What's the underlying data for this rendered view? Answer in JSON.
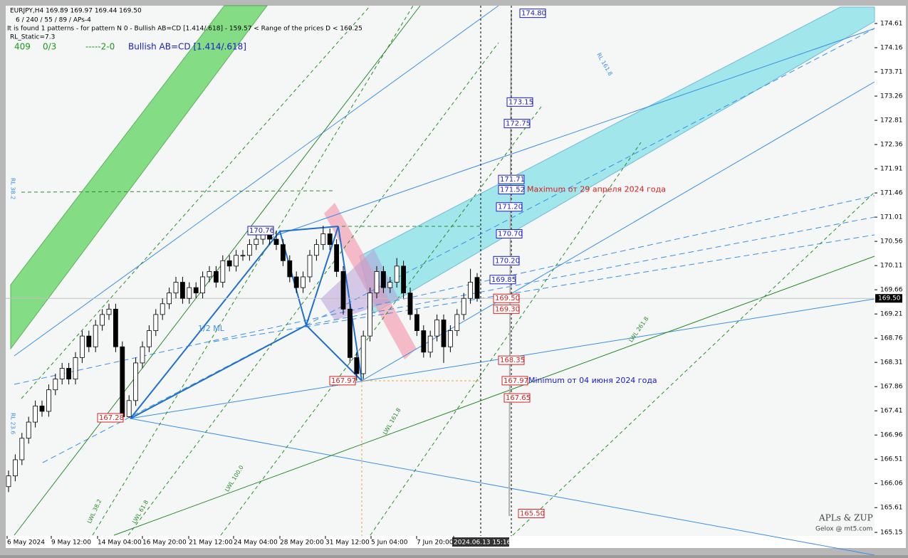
{
  "chart_data": {
    "type": "candlestick",
    "header": {
      "symbol_line": "EURJPY,H4  169.89 169.97 169.44 169.50",
      "params_line": "6 / 240 / 55 / 89 / APs-4",
      "pattern_line": "It is found 1 patterns  -  for pattern N 0 - Bullish AB=CD [1.414/.618] - 159.57 < Range of the prices D < 160.25",
      "static_line": "RL_Static=7.3",
      "count": "409",
      "ratio": "0/3",
      "zigzag": "-----2-0",
      "pattern_name": "Bullish AB=CD [1.414/.618]"
    },
    "open": [
      166.0,
      166.2,
      166.5,
      166.9,
      167.2,
      167.5,
      167.4,
      167.8,
      168.0,
      168.2,
      168.0,
      168.4,
      168.8,
      168.6,
      169.0,
      169.2,
      169.3,
      168.6,
      167.3,
      167.6,
      168.3,
      168.6,
      168.9,
      169.2,
      169.4,
      169.6,
      169.8,
      169.5,
      169.7,
      169.6,
      169.9,
      170.0,
      169.8,
      170.2,
      170.1,
      170.3,
      170.3,
      170.5,
      170.6,
      170.7,
      170.6,
      170.5,
      170.2,
      169.9,
      169.7,
      169.9,
      170.3,
      170.5,
      170.7,
      170.5,
      170.0,
      169.3,
      168.4,
      168.1,
      168.8,
      169.6,
      170.0,
      169.7,
      169.8,
      170.1,
      169.6,
      169.2,
      168.9,
      168.5,
      168.8,
      169.1,
      168.6,
      168.9,
      169.2,
      169.5,
      169.89
    ],
    "high": [
      166.3,
      166.6,
      167.0,
      167.3,
      167.6,
      167.6,
      167.9,
      168.1,
      168.3,
      168.3,
      168.5,
      168.9,
      168.9,
      169.1,
      169.3,
      169.4,
      169.4,
      168.7,
      167.7,
      168.4,
      168.7,
      169.0,
      169.3,
      169.5,
      169.7,
      169.9,
      169.9,
      169.8,
      169.8,
      170.0,
      170.1,
      170.1,
      170.3,
      170.3,
      170.4,
      170.4,
      170.6,
      170.7,
      170.75,
      170.75,
      170.76,
      170.6,
      170.3,
      170.0,
      170.0,
      170.4,
      170.6,
      170.85,
      170.8,
      170.6,
      170.1,
      169.4,
      168.5,
      168.9,
      169.7,
      170.1,
      170.1,
      169.9,
      170.25,
      170.2,
      169.7,
      169.3,
      169.0,
      168.9,
      169.2,
      169.2,
      169.0,
      169.3,
      169.6,
      170.05,
      169.97
    ],
    "low": [
      165.9,
      166.1,
      166.4,
      166.8,
      167.1,
      167.3,
      167.3,
      167.7,
      167.9,
      167.9,
      167.9,
      168.3,
      168.5,
      168.5,
      168.9,
      169.1,
      168.5,
      167.3,
      167.28,
      167.5,
      168.2,
      168.5,
      168.8,
      169.1,
      169.3,
      169.5,
      169.4,
      169.4,
      169.5,
      169.5,
      169.8,
      169.7,
      169.7,
      170.0,
      170.0,
      170.2,
      170.2,
      170.4,
      170.5,
      170.5,
      170.4,
      170.1,
      169.8,
      169.6,
      169.6,
      169.8,
      170.2,
      170.4,
      170.4,
      169.9,
      169.2,
      168.3,
      167.97,
      168.0,
      168.7,
      169.5,
      169.6,
      169.6,
      169.7,
      169.5,
      169.1,
      168.8,
      168.4,
      168.4,
      168.7,
      168.3,
      168.5,
      168.8,
      169.1,
      169.4,
      169.44
    ],
    "close": [
      166.2,
      166.5,
      166.9,
      167.2,
      167.5,
      167.4,
      167.8,
      168.0,
      168.2,
      168.0,
      168.4,
      168.8,
      168.6,
      169.0,
      169.2,
      169.3,
      168.6,
      167.3,
      167.6,
      168.3,
      168.6,
      168.9,
      169.2,
      169.4,
      169.6,
      169.8,
      169.5,
      169.7,
      169.6,
      169.9,
      170.0,
      169.8,
      170.2,
      170.1,
      170.3,
      170.3,
      170.5,
      170.6,
      170.7,
      170.6,
      170.5,
      170.2,
      169.9,
      169.7,
      169.9,
      170.3,
      170.5,
      170.7,
      170.5,
      170.0,
      169.3,
      168.4,
      168.1,
      168.8,
      169.6,
      170.0,
      169.7,
      169.8,
      170.1,
      169.6,
      169.2,
      168.9,
      168.5,
      168.8,
      169.1,
      168.6,
      168.9,
      169.2,
      169.5,
      169.8,
      169.5
    ],
    "ylim": [
      165.15,
      174.61
    ],
    "yticks": [
      174.61,
      174.16,
      173.71,
      173.26,
      172.81,
      172.36,
      171.91,
      171.46,
      171.01,
      170.56,
      170.11,
      169.66,
      169.21,
      168.76,
      168.31,
      167.86,
      167.41,
      166.96,
      166.51,
      166.06,
      165.61,
      165.15
    ],
    "current_price": {
      "value": 169.5,
      "label": "169.50"
    },
    "x_labels": [
      "6 May 2024",
      "9 May 12:00",
      "14 May 04:00",
      "16 May 20:00",
      "21 May 12:00",
      "24 May 04:00",
      "28 May 20:00",
      "31 May 12:00",
      "5 Jun 04:00",
      "7 Jun 20:00",
      "2024.06.13 15:16"
    ],
    "levels": [
      {
        "value": 174.8,
        "label": "174.80",
        "color": "#1a1acc"
      },
      {
        "value": 173.15,
        "label": "173.15",
        "color": "#1a1acc"
      },
      {
        "value": 172.75,
        "label": "172.75",
        "color": "#1a1acc"
      },
      {
        "value": 171.71,
        "label": "171.71",
        "color": "#1a1acc"
      },
      {
        "value": 171.52,
        "label": "171.52",
        "color": "#1a1acc"
      },
      {
        "value": 171.2,
        "label": "171.20",
        "color": "#1a1acc"
      },
      {
        "value": 170.7,
        "label": "170.70",
        "color": "#1a1acc"
      },
      {
        "value": 170.2,
        "label": "170.20",
        "color": "#1a1acc"
      },
      {
        "value": 169.85,
        "label": "169.85",
        "color": "#1a1acc"
      },
      {
        "value": 169.5,
        "label": "169.50",
        "color": "#d42020"
      },
      {
        "value": 169.3,
        "label": "169.30",
        "color": "#d42020"
      },
      {
        "value": 168.35,
        "label": "168.35",
        "color": "#d42020"
      },
      {
        "value": 167.97,
        "label": "167.97",
        "color": "#d42020"
      },
      {
        "value": 167.65,
        "label": "167.65",
        "color": "#d42020"
      },
      {
        "value": 165.5,
        "label": "165.50",
        "color": "#d42020"
      },
      {
        "value": 170.76,
        "label": "170.76",
        "color": "#1a1acc"
      },
      {
        "value": 167.28,
        "label": "167.28",
        "color": "#d42020"
      },
      {
        "value": 167.97,
        "label": "167.97",
        "color": "#d42020"
      }
    ],
    "annotations": [
      {
        "text": "Maximum от 29 апреля 2024 года",
        "color": "#d42020"
      },
      {
        "text": "Minimum от 04 июня 2024 года",
        "color": "#1a1acc"
      },
      {
        "text": "1/2 ML",
        "color": "#3a8ee6"
      }
    ],
    "fan_labels": [
      "LWL 38.2",
      "LWL 61.8",
      "LWL 100.0",
      "LWL 161.8",
      "LWL 261.8",
      "RL 23.6",
      "RL 38.2",
      "RL 161.8"
    ],
    "watermark": {
      "title": "APLs & ZUP",
      "author": "Gelox @ mt5.com"
    }
  }
}
